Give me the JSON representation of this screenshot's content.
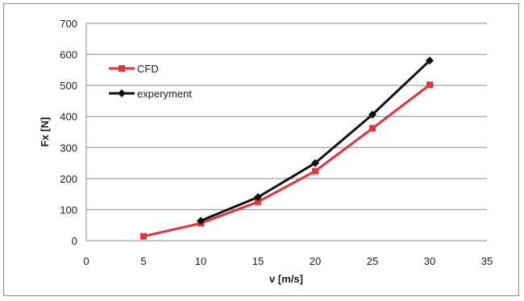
{
  "chart_data": {
    "type": "line",
    "xlabel": "v [m/s]",
    "ylabel": "Fx [N]",
    "xlim": [
      0,
      35
    ],
    "ylim": [
      0,
      700
    ],
    "x_ticks": [
      "0",
      "5",
      "10",
      "15",
      "20",
      "25",
      "30",
      "35"
    ],
    "y_ticks": [
      "0",
      "100",
      "200",
      "300",
      "400",
      "500",
      "600",
      "700"
    ],
    "grid": "horizontal",
    "legend_position": "upper-left inside plot",
    "series": [
      {
        "name": "CFD",
        "color": "#e8303a",
        "marker": "square",
        "x": [
          5,
          10,
          15,
          20,
          25,
          30
        ],
        "y": [
          14,
          56,
          125,
          224,
          362,
          502
        ]
      },
      {
        "name": "experyment",
        "color": "#111111",
        "marker": "diamond",
        "x": [
          10,
          15,
          20,
          25,
          30
        ],
        "y": [
          64,
          140,
          250,
          406,
          580
        ]
      }
    ]
  }
}
